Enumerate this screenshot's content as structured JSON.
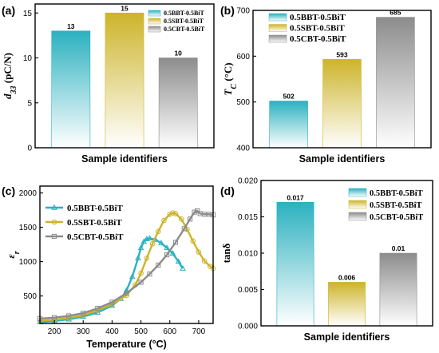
{
  "colors": {
    "BBT": "#2bb1bf",
    "SBT": "#cdb42a",
    "CBT": "#8c8c8c"
  },
  "chart_data": [
    {
      "id": "a",
      "panel_label": "(a)",
      "type": "bar",
      "categories": [
        "0.5BBT-0.5BiT",
        "0.5SBT-0.5BiT",
        "0.5CBT-0.5BiT"
      ],
      "values": [
        13,
        15,
        10
      ],
      "value_labels": [
        "13",
        "15",
        "10"
      ],
      "xlabel": "Sample identifiers",
      "ylabel_main": "d",
      "ylabel_sub": "33",
      "ylabel_rest": " (pC/N)",
      "ylim": [
        0,
        16
      ],
      "yticks": [
        0,
        5,
        10,
        15
      ],
      "ytick_labels": [
        "0",
        "5",
        "10",
        "15"
      ],
      "legend": [
        "0.5BBT-0.5BiT",
        "0.5SBT-0.5BiT",
        "0.5CBT-0.5BiT"
      ],
      "legend_position": "top-right"
    },
    {
      "id": "b",
      "panel_label": "(b)",
      "type": "bar",
      "categories": [
        "0.5BBT-0.5BiT",
        "0.5SBT-0.5BiT",
        "0.5CBT-0.5BiT"
      ],
      "values": [
        502,
        593,
        685
      ],
      "value_labels": [
        "502",
        "593",
        "685"
      ],
      "xlabel": "Sample identifiers",
      "ylabel_main": "T",
      "ylabel_sub": "C",
      "ylabel_rest": " (°C)",
      "ylim": [
        400,
        700
      ],
      "yticks": [
        400,
        500,
        600,
        700
      ],
      "ytick_labels": [
        "400",
        "500",
        "600",
        "700"
      ],
      "legend": [
        "0.5BBT-0.5BiT",
        "0.5SBT-0.5BiT",
        "0.5CBT-0.5BiT"
      ],
      "legend_position": "top-left"
    },
    {
      "id": "c",
      "panel_label": "(c)",
      "type": "line",
      "xlabel": "Temperature (°C)",
      "ylabel_main": "ε",
      "ylabel_sub": "r",
      "ylabel_rest": "",
      "xlim": [
        150,
        750
      ],
      "ylim": [
        100,
        2100
      ],
      "xticks": [
        200,
        300,
        400,
        500,
        600,
        700
      ],
      "xtick_labels": [
        "200",
        "300",
        "400",
        "500",
        "600",
        "700"
      ],
      "yticks": [
        500,
        1000,
        1500,
        2000
      ],
      "ytick_labels": [
        "500",
        "1000",
        "1500",
        "2000"
      ],
      "legend_position": "top-left",
      "series": [
        {
          "name": "0.5BBT-0.5BiT",
          "marker": "triangle",
          "x": [
            150,
            200,
            250,
            300,
            350,
            400,
            430,
            450,
            470,
            490,
            500,
            510,
            520,
            530,
            550,
            570,
            590,
            610,
            630,
            645
          ],
          "y": [
            120,
            135,
            160,
            200,
            260,
            360,
            460,
            580,
            780,
            1050,
            1200,
            1290,
            1330,
            1340,
            1320,
            1270,
            1200,
            1120,
            1000,
            900
          ]
        },
        {
          "name": "0.5SBT-0.5BiT",
          "marker": "circle",
          "x": [
            150,
            200,
            250,
            300,
            350,
            400,
            450,
            480,
            500,
            520,
            540,
            560,
            580,
            600,
            610,
            620,
            640,
            660,
            680,
            700,
            720,
            740,
            750
          ],
          "y": [
            140,
            155,
            180,
            220,
            290,
            380,
            510,
            660,
            830,
            1050,
            1260,
            1440,
            1600,
            1690,
            1710,
            1700,
            1620,
            1470,
            1300,
            1140,
            1010,
            930,
            900
          ]
        },
        {
          "name": "0.5CBT-0.5BiT",
          "marker": "square",
          "x": [
            150,
            200,
            250,
            300,
            350,
            400,
            450,
            500,
            530,
            560,
            590,
            620,
            650,
            670,
            685,
            695,
            705,
            720,
            735,
            750
          ],
          "y": [
            170,
            185,
            210,
            250,
            320,
            410,
            540,
            700,
            820,
            950,
            1100,
            1280,
            1480,
            1620,
            1720,
            1740,
            1700,
            1690,
            1690,
            1680
          ]
        }
      ]
    },
    {
      "id": "d",
      "panel_label": "(d)",
      "type": "bar",
      "categories": [
        "0.5BBT-0.5BiT",
        "0.5SBT-0.5BiT",
        "0.5CBT-0.5BiT"
      ],
      "values": [
        0.017,
        0.006,
        0.01
      ],
      "value_labels": [
        "0.017",
        "0.006",
        "0.01"
      ],
      "xlabel": "Sample identifiers",
      "ylabel_main": "tanδ",
      "ylabel_sub": "",
      "ylabel_rest": "",
      "ylim": [
        0,
        0.02
      ],
      "yticks": [
        0,
        0.005,
        0.01,
        0.015,
        0.02
      ],
      "ytick_labels": [
        "0.000",
        "0.005",
        "0.010",
        "0.015",
        "0.020"
      ],
      "legend": [
        "0.5BBT-0.5BiT",
        "0.5SBT-0.5BiT",
        "0.5CBT-0.5BiT"
      ],
      "legend_position": "top-right"
    }
  ]
}
